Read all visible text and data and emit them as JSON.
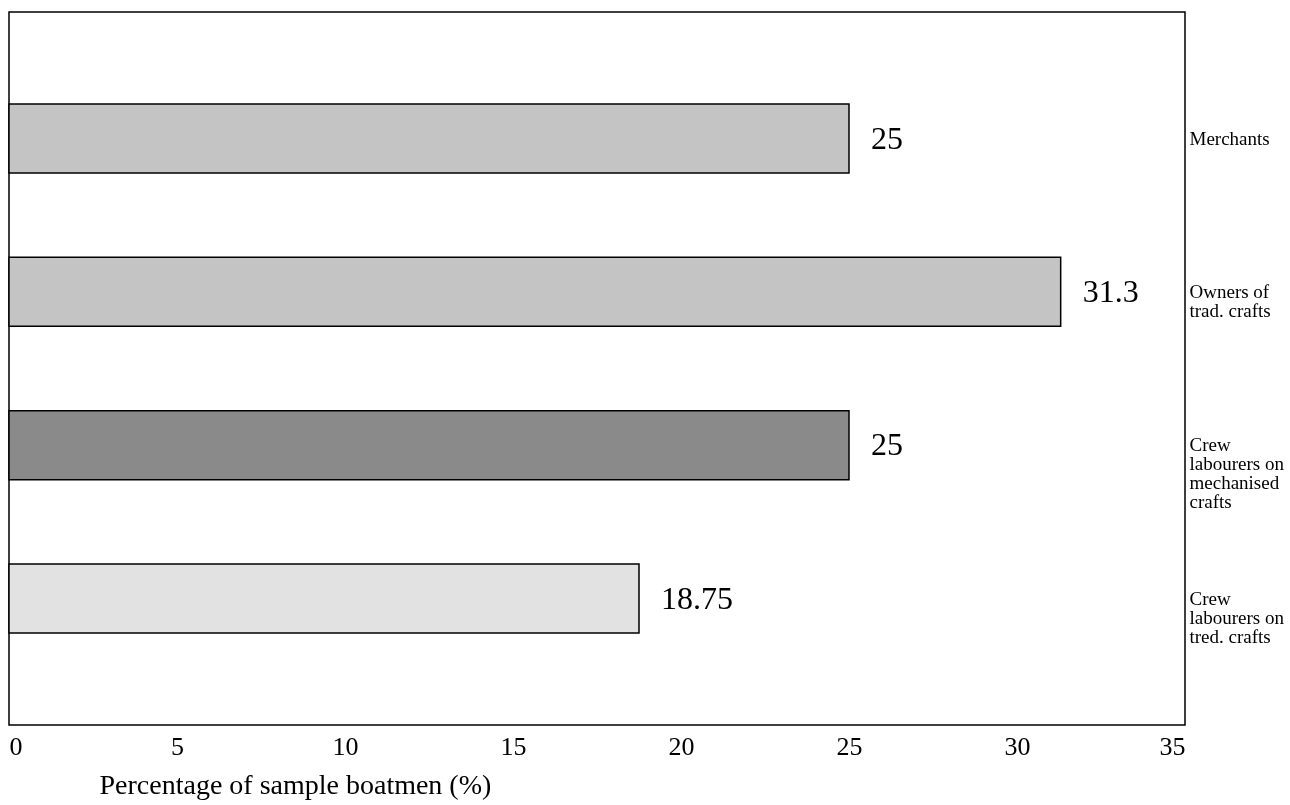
{
  "chart_data": {
    "type": "bar",
    "orientation": "horizontal",
    "xlabel": "Percentage of sample boatmen (%)",
    "categories": [
      "Merchants",
      "Owners of trad. crafts",
      "Crew labourers on mechanised crafts",
      "Crew labourers on tred. crafts"
    ],
    "values": [
      25,
      31.3,
      25,
      18.75
    ],
    "colors": [
      "#c4c4c4",
      "#c4c4c4",
      "#8a8a8a",
      "#e2e2e2"
    ],
    "xlim": [
      0,
      35
    ],
    "xticks": [
      0,
      5,
      10,
      15,
      20,
      25,
      30,
      35
    ],
    "grid": false,
    "data_labels": true
  }
}
